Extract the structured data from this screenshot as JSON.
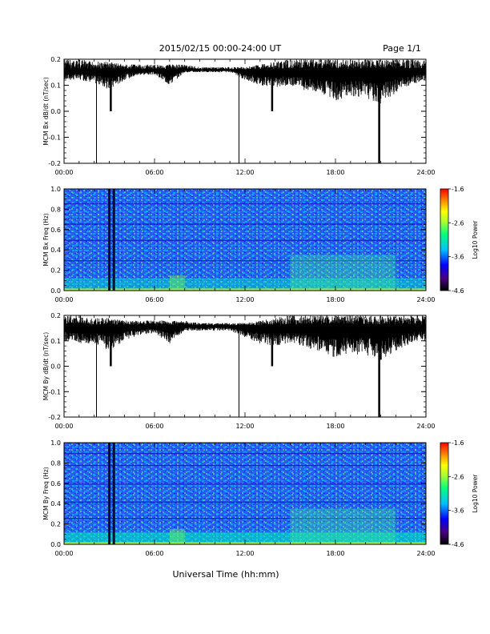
{
  "header": {
    "title": "2015/02/15  00:00-24:00 UT",
    "page": "Page 1/1"
  },
  "xaxis": {
    "label": "Universal Time (hh:mm)",
    "range_hours": [
      0,
      24
    ],
    "ticks": [
      "00:00",
      "06:00",
      "12:00",
      "18:00",
      "24:00"
    ]
  },
  "colorbar": {
    "label": "Log10 Power",
    "range": [
      -4.6,
      -1.6
    ],
    "tick_labels": [
      "-1.6",
      "-2.6",
      "-3.6",
      "-4.6"
    ],
    "colors": [
      "#000000",
      "#4b0082",
      "#0000ff",
      "#00bfff",
      "#00ff7f",
      "#adff2f",
      "#ffff00",
      "#ff8c00",
      "#ff0000"
    ]
  },
  "chart_data": [
    {
      "type": "line",
      "title": "",
      "ylabel": "MCM Bx dB/dt (nT/sec)",
      "ylim": [
        -0.2,
        0.2
      ],
      "yticks": [
        "0.2",
        "0.1",
        "0.0",
        "-0.1",
        "-0.2"
      ],
      "baseline": 0.16,
      "spikes": [
        {
          "x": 2.15,
          "y": -0.2
        },
        {
          "x": 3.1,
          "y": 0.0
        },
        {
          "x": 11.6,
          "y": -0.2
        },
        {
          "x": 13.8,
          "y": 0.0
        },
        {
          "x": 20.9,
          "y": -0.2
        }
      ],
      "x": [
        0,
        1,
        2,
        3,
        4,
        5,
        6,
        7,
        8,
        9,
        10,
        11,
        12,
        13,
        14,
        15,
        16,
        17,
        18,
        19,
        20,
        21,
        22,
        23,
        24
      ],
      "series": [
        {
          "upper": [
            0.2,
            0.2,
            0.19,
            0.19,
            0.18,
            0.18,
            0.18,
            0.18,
            0.18,
            0.17,
            0.17,
            0.17,
            0.17,
            0.18,
            0.19,
            0.2,
            0.2,
            0.2,
            0.2,
            0.2,
            0.2,
            0.2,
            0.2,
            0.2,
            0.2
          ],
          "lower": [
            0.12,
            0.12,
            0.11,
            0.08,
            0.12,
            0.14,
            0.14,
            0.1,
            0.15,
            0.15,
            0.15,
            0.15,
            0.12,
            0.1,
            0.09,
            0.1,
            0.08,
            0.07,
            0.04,
            0.06,
            0.05,
            0.03,
            0.07,
            0.1,
            0.12
          ]
        }
      ]
    },
    {
      "type": "heatmap",
      "title": "",
      "ylabel": "MCM Bx Freq (Hz)",
      "ylim": [
        0.0,
        1.0
      ],
      "yticks": [
        "1.0",
        "0.8",
        "0.6",
        "0.4",
        "0.2",
        "0.0"
      ],
      "dark_columns_hours": [
        3.0,
        3.3
      ]
    },
    {
      "type": "line",
      "title": "",
      "ylabel": "MCM By dB/dt (nT/sec)",
      "ylim": [
        -0.2,
        0.2
      ],
      "yticks": [
        "0.2",
        "0.1",
        "0.0",
        "-0.1",
        "-0.2"
      ],
      "baseline": 0.16,
      "spikes": [
        {
          "x": 2.15,
          "y": -0.2
        },
        {
          "x": 3.1,
          "y": 0.0
        },
        {
          "x": 11.6,
          "y": -0.2
        },
        {
          "x": 13.8,
          "y": 0.0
        },
        {
          "x": 20.9,
          "y": -0.2
        }
      ],
      "x": [
        0,
        1,
        2,
        3,
        4,
        5,
        6,
        7,
        8,
        9,
        10,
        11,
        12,
        13,
        14,
        15,
        16,
        17,
        18,
        19,
        20,
        21,
        22,
        23,
        24
      ],
      "series": [
        {
          "upper": [
            0.2,
            0.2,
            0.19,
            0.19,
            0.18,
            0.18,
            0.18,
            0.18,
            0.18,
            0.17,
            0.17,
            0.17,
            0.17,
            0.18,
            0.19,
            0.2,
            0.2,
            0.2,
            0.2,
            0.2,
            0.2,
            0.2,
            0.2,
            0.2,
            0.2
          ],
          "lower": [
            0.1,
            0.09,
            0.09,
            0.06,
            0.1,
            0.12,
            0.13,
            0.09,
            0.14,
            0.14,
            0.14,
            0.14,
            0.11,
            0.09,
            0.08,
            0.09,
            0.07,
            0.06,
            0.03,
            0.05,
            0.04,
            0.02,
            0.06,
            0.09,
            0.1
          ]
        }
      ]
    },
    {
      "type": "heatmap",
      "title": "",
      "ylabel": "MCM By Freq (Hz)",
      "ylim": [
        0.0,
        1.0
      ],
      "yticks": [
        "1.0",
        "0.8",
        "0.6",
        "0.4",
        "0.2",
        "0.0"
      ],
      "dark_columns_hours": [
        3.0,
        3.3
      ]
    }
  ]
}
